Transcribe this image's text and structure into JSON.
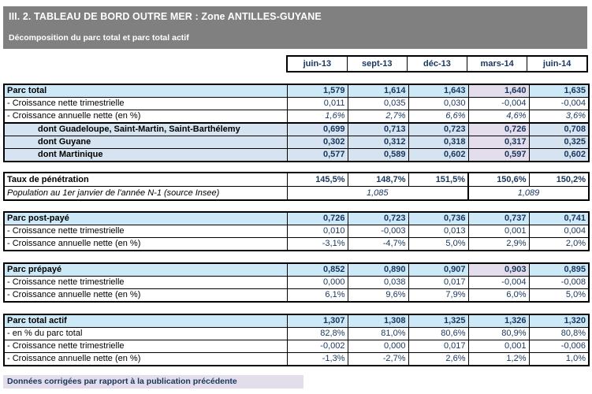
{
  "header": {
    "title": "III. 2. TABLEAU DE BORD OUTRE MER : Zone ANTILLES-GUYANE",
    "subtitle": "Décomposition du parc total et parc total actif"
  },
  "columns": [
    "juin-13",
    "sept-13",
    "déc-13",
    "mars-14",
    "juin-14"
  ],
  "blocks": [
    {
      "name": "parc-total",
      "rows": [
        {
          "label": "Parc total",
          "type": "header",
          "values": [
            "1,579",
            "1,614",
            "1,643",
            "1,640",
            "1,635"
          ],
          "highlight": [
            3
          ]
        },
        {
          "label": "- Croissance nette trimestrielle",
          "type": "plain",
          "values": [
            "0,011",
            "0,035",
            "0,030",
            "-0,004",
            "-0,004"
          ]
        },
        {
          "label": "- Croissance annuelle nette (en %)",
          "type": "plain",
          "italic": true,
          "values": [
            "1,6%",
            "2,7%",
            "6,6%",
            "4,6%",
            "3,6%"
          ]
        },
        {
          "label": "dont Guadeloupe, Saint-Martin, Saint-Barthélemy",
          "type": "sub",
          "values": [
            "0,699",
            "0,713",
            "0,723",
            "0,726",
            "0,708"
          ],
          "highlight": [
            3
          ]
        },
        {
          "label": "dont Guyane",
          "type": "sub",
          "values": [
            "0,302",
            "0,312",
            "0,318",
            "0,317",
            "0,325"
          ],
          "highlight": [
            3
          ]
        },
        {
          "label": "dont Martinique",
          "type": "sub",
          "values": [
            "0,577",
            "0,589",
            "0,602",
            "0,597",
            "0,602"
          ],
          "highlight": [
            3
          ]
        }
      ]
    },
    {
      "name": "taux-de-penetration",
      "rows": [
        {
          "label": "Taux de pénétration",
          "type": "bold",
          "values": [
            "145,5%",
            "148,7%",
            "151,5%",
            "150,6%",
            "150,2%"
          ]
        },
        {
          "label": "Population au 1er janvier de l'année N-1 (source Insee)",
          "type": "pop",
          "spans": [
            {
              "value": "1,085",
              "cols": 3
            },
            {
              "value": "1,089",
              "cols": 2
            }
          ]
        }
      ]
    },
    {
      "name": "parc-post-paye",
      "rows": [
        {
          "label": "Parc post-payé",
          "type": "header",
          "values": [
            "0,726",
            "0,723",
            "0,736",
            "0,737",
            "0,741"
          ]
        },
        {
          "label": "- Croissance nette trimestrielle",
          "type": "plain",
          "values": [
            "0,010",
            "-0,003",
            "0,013",
            "0,001",
            "0,004"
          ]
        },
        {
          "label": "- Croissance annuelle nette (en %)",
          "type": "plain",
          "values": [
            "-3,1%",
            "-4,7%",
            "5,0%",
            "2,9%",
            "2,0%"
          ]
        }
      ]
    },
    {
      "name": "parc-prepaye",
      "rows": [
        {
          "label": "Parc prépayé",
          "type": "header",
          "values": [
            "0,852",
            "0,890",
            "0,907",
            "0,903",
            "0,895"
          ],
          "highlight": [
            3
          ]
        },
        {
          "label": "- Croissance nette trimestrielle",
          "type": "plain",
          "values": [
            "0,000",
            "0,038",
            "0,017",
            "-0,004",
            "-0,008"
          ]
        },
        {
          "label": "- Croissance annuelle nette (en %)",
          "type": "plain",
          "values": [
            "6,1%",
            "9,6%",
            "7,9%",
            "6,0%",
            "5,0%"
          ]
        }
      ]
    },
    {
      "name": "parc-total-actif",
      "rows": [
        {
          "label": "Parc total actif",
          "type": "header",
          "values": [
            "1,307",
            "1,308",
            "1,325",
            "1,326",
            "1,320"
          ]
        },
        {
          "label": "- en % du parc total",
          "type": "plain",
          "values": [
            "82,8%",
            "81,0%",
            "80,6%",
            "80,9%",
            "80,8%"
          ]
        },
        {
          "label": "- Croissance nette trimestrielle",
          "type": "plain",
          "values": [
            "-0,002",
            "0,000",
            "0,017",
            "0,001",
            "-0,006"
          ]
        },
        {
          "label": "- Croissance annuelle nette (en %)",
          "type": "plain",
          "values": [
            "-1,3%",
            "-2,7%",
            "2,6%",
            "1,2%",
            "1,0%"
          ]
        }
      ]
    }
  ],
  "footer": {
    "note": "Données corrigées par rapport à la publication précédente"
  },
  "colors": {
    "gray": "#808080",
    "blue": "#CDE9F8",
    "subblue": "#D6E4F1",
    "lav": "#E4DEEC",
    "navy": "#17365D"
  }
}
